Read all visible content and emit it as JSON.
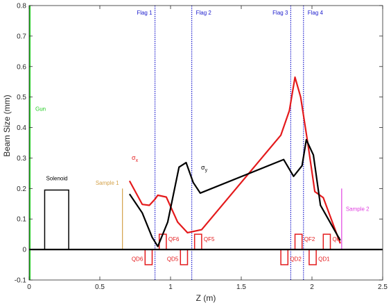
{
  "chart_data": {
    "type": "line",
    "xlabel": "Z (m)",
    "ylabel": "Beam Size (mm)",
    "xlim": [
      0,
      2.5
    ],
    "ylim": [
      -0.1,
      0.8
    ],
    "xticks": [
      0,
      0.5,
      1,
      1.5,
      2,
      2.5
    ],
    "yticks": [
      -0.1,
      0,
      0.1,
      0.2,
      0.3,
      0.4,
      0.5,
      0.6,
      0.7,
      0.8
    ],
    "xtick_labels": [
      "0",
      "0.5",
      "1",
      "1.5",
      "2",
      "2.5"
    ],
    "ytick_labels": [
      "-0.1",
      "0",
      "0.1",
      "0.2",
      "0.3",
      "0.4",
      "0.5",
      "0.6",
      "0.7",
      "0.8"
    ],
    "grid": false,
    "series": [
      {
        "name": "sigma_x",
        "color": "#e41a1c",
        "x": [
          0.71,
          0.8,
          0.85,
          0.89,
          0.91,
          0.97,
          1.05,
          1.12,
          1.22,
          1.78,
          1.84,
          1.88,
          1.92,
          1.97,
          2.02,
          2.08,
          2.2
        ],
        "y": [
          0.225,
          0.148,
          0.145,
          0.165,
          0.178,
          0.172,
          0.09,
          0.055,
          0.065,
          0.375,
          0.455,
          0.565,
          0.5,
          0.35,
          0.19,
          0.17,
          0.02
        ]
      },
      {
        "name": "sigma_y",
        "color": "#000000",
        "x": [
          0.71,
          0.8,
          0.87,
          0.91,
          0.98,
          1.06,
          1.11,
          1.16,
          1.21,
          1.8,
          1.87,
          1.93,
          1.96,
          2.01,
          2.06,
          2.2
        ],
        "y": [
          0.182,
          0.12,
          0.04,
          0.01,
          0.09,
          0.27,
          0.285,
          0.22,
          0.185,
          0.295,
          0.24,
          0.275,
          0.36,
          0.31,
          0.145,
          0.03
        ]
      }
    ],
    "flags": [
      {
        "label": "Flag 1",
        "x": 0.89
      },
      {
        "label": "Flag 2",
        "x": 1.15
      },
      {
        "label": "Flag 3",
        "x": 1.85
      },
      {
        "label": "Flag 4",
        "x": 1.94
      }
    ],
    "samples": [
      {
        "label": "Sample 1",
        "x": 0.66,
        "top": 0.2,
        "color": "#d4a24a"
      },
      {
        "label": "Sample 2",
        "x": 2.21,
        "top": 0.2,
        "color": "#e040e0"
      }
    ],
    "gun": {
      "label": "Gun",
      "color": "#22cc22"
    },
    "solenoid": {
      "label": "Solenoid",
      "x0": 0.11,
      "x1": 0.28,
      "height": 0.195
    },
    "quadrupoles": [
      {
        "label": "QD6",
        "x0": 0.82,
        "x1": 0.87,
        "h": -0.05
      },
      {
        "label": "QF6",
        "x0": 0.92,
        "x1": 0.97,
        "h": 0.05
      },
      {
        "label": "QD5",
        "x0": 1.07,
        "x1": 1.12,
        "h": -0.05
      },
      {
        "label": "QF5",
        "x0": 1.17,
        "x1": 1.22,
        "h": 0.05
      },
      {
        "label": "QD2",
        "x0": 1.78,
        "x1": 1.83,
        "h": -0.05
      },
      {
        "label": "QF2",
        "x0": 1.88,
        "x1": 1.93,
        "h": 0.05
      },
      {
        "label": "QD1",
        "x0": 1.98,
        "x1": 2.03,
        "h": -0.05
      },
      {
        "label": "QF1",
        "x0": 2.08,
        "x1": 2.13,
        "h": 0.05
      }
    ],
    "quad_labels_visible": [
      "QD6",
      "QF6",
      "QD5",
      "QF5",
      "QD2",
      "QF2",
      "QD1",
      "QF"
    ],
    "annotations": {
      "sigma_x": {
        "symbol": "σ",
        "sub": "x"
      },
      "sigma_y": {
        "symbol": "σ",
        "sub": "y"
      }
    }
  }
}
